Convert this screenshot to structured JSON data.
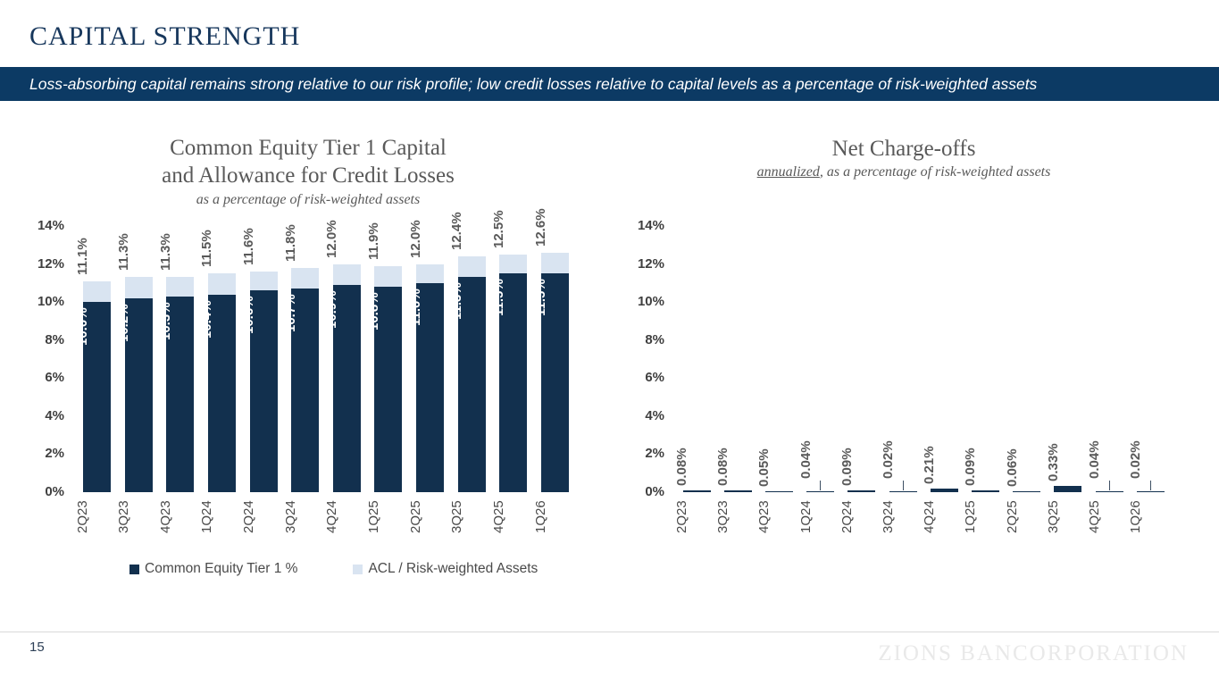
{
  "slide": {
    "title": "CAPITAL STRENGTH",
    "banner_text": "Loss-absorbing capital remains strong relative to our risk profile; low credit losses relative to capital levels as a percentage of risk-weighted assets",
    "page_number": "15",
    "watermark": "ZIONS BANCORPORATION"
  },
  "colors": {
    "banner_bg": "#0C3A64",
    "title_text": "#17375C",
    "cet1_bar": "#12304E",
    "acl_bar": "#D9E4F1",
    "nco_bar": "#12304E",
    "chart_title": "#595959",
    "axis_label": "#3F3F3F",
    "value_label": "#595959",
    "inside_label": "#FFFFFF"
  },
  "chart_data": [
    {
      "id": "cet1-acl",
      "type": "bar",
      "stacked": true,
      "title_lines": [
        "Common Equity Tier 1 Capital",
        "and Allowance for Credit Losses"
      ],
      "subtitle": "as a percentage of risk-weighted assets",
      "categories": [
        "2Q23",
        "3Q23",
        "4Q23",
        "1Q24",
        "2Q24",
        "3Q24",
        "4Q24",
        "1Q25",
        "2Q25",
        "3Q25",
        "4Q25",
        "1Q26"
      ],
      "series": [
        {
          "name": "Common Equity Tier 1 %",
          "color": "#12304E",
          "values": [
            10.0,
            10.2,
            10.3,
            10.4,
            10.6,
            10.7,
            10.9,
            10.8,
            11.0,
            11.3,
            11.5,
            11.5
          ],
          "labels": [
            "10.0%",
            "10.2%",
            "10.3%",
            "10.4%",
            "10.6%",
            "10.7%",
            "10.9%",
            "10.8%",
            "11.0%",
            "11.3%",
            "11.5%",
            "11.5%"
          ]
        },
        {
          "name": "ACL / Risk-weighted Assets",
          "color": "#D9E4F1",
          "values": [
            1.1,
            1.1,
            1.0,
            1.1,
            1.0,
            1.1,
            1.1,
            1.1,
            1.0,
            1.1,
            1.0,
            1.1
          ]
        }
      ],
      "stack_totals": [
        11.1,
        11.3,
        11.3,
        11.5,
        11.6,
        11.8,
        12.0,
        11.9,
        12.0,
        12.4,
        12.5,
        12.6
      ],
      "stack_total_labels": [
        "11.1%",
        "11.3%",
        "11.3%",
        "11.5%",
        "11.6%",
        "11.8%",
        "12.0%",
        "11.9%",
        "12.0%",
        "12.4%",
        "12.5%",
        "12.6%"
      ],
      "ylim": [
        0,
        14
      ],
      "yticks": [
        "0%",
        "2%",
        "4%",
        "6%",
        "8%",
        "10%",
        "12%",
        "14%"
      ],
      "grid": false,
      "legend_position": "bottom"
    },
    {
      "id": "nco",
      "type": "bar",
      "title": "Net Charge-offs",
      "subtitle_underlined": "annualized",
      "subtitle_rest": ", as a percentage of risk-weighted assets",
      "categories": [
        "2Q23",
        "3Q23",
        "4Q23",
        "1Q24",
        "2Q24",
        "3Q24",
        "4Q24",
        "1Q25",
        "2Q25",
        "3Q25",
        "4Q25",
        "1Q26"
      ],
      "values": [
        0.08,
        0.08,
        0.05,
        0.04,
        0.09,
        0.02,
        0.21,
        0.09,
        0.06,
        0.33,
        0.04,
        0.02
      ],
      "labels": [
        "0.08%",
        "0.08%",
        "0.05%",
        "0.04%",
        "0.09%",
        "0.02%",
        "0.21%",
        "0.09%",
        "0.06%",
        "0.33%",
        "0.04%",
        "0.02%"
      ],
      "ylim": [
        0,
        14
      ],
      "yticks": [
        "0%",
        "2%",
        "4%",
        "6%",
        "8%",
        "10%",
        "12%",
        "14%"
      ],
      "grid": false
    }
  ]
}
